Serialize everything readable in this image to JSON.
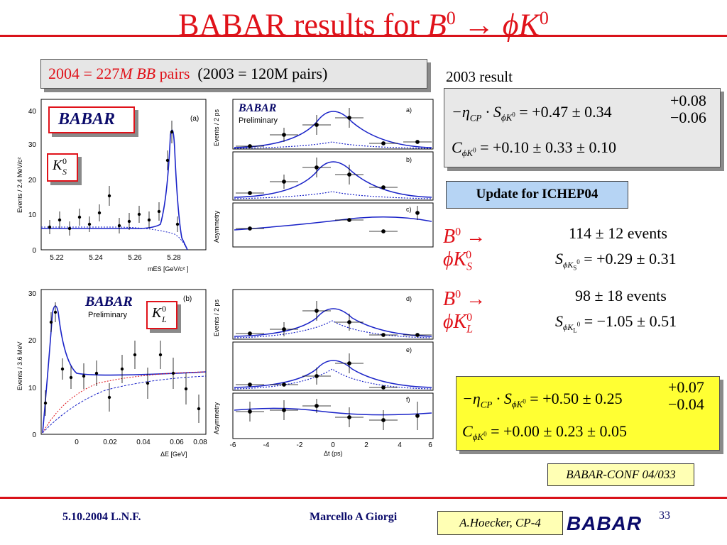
{
  "slide": {
    "title_text": "BABAR results for ",
    "title_sym_b": "B",
    "title_sup_b": "0",
    "title_arrow": "→",
    "title_sym_phi": "ϕK",
    "title_sup_k": "0"
  },
  "pairs_box": {
    "red_part_a": "2004 = 227",
    "red_part_m": "M BB",
    "red_part_b": " pairs",
    "black_part": "(2003 = 120M pairs)"
  },
  "result_2003": {
    "label": "2003 result",
    "row1_lhs": "−η",
    "row1_lhs_sub": "CP",
    "row1_dot": " · S",
    "row1_sub": "ϕK",
    "row1_sub_sup": "0",
    "row1_rhs": "= +0.47 ± 0.34",
    "row1_plus": "+0.08",
    "row1_minus": "−0.06",
    "row2_lhs": "C",
    "row2_sub": "ϕK",
    "row2_sub_sup": "0",
    "row2_rhs": "= +0.10 ± 0.33 ± 0.10"
  },
  "ichep_label": "Update for ICHEP04",
  "ks_result": {
    "mode_b": "B",
    "mode_b_sup": "0",
    "mode_rest": "→ ϕK",
    "mode_sub": "S",
    "mode_sup": "0",
    "events": "114 ± 12 events",
    "s_lhs": "S",
    "s_sub": "ϕK",
    "s_sub_sub": "S",
    "s_sub_sup": "0",
    "s_rhs": "= +0.29 ± 0.31"
  },
  "kl_result": {
    "mode_b": "B",
    "mode_b_sup": "0",
    "mode_rest": "→ ϕK",
    "mode_sub": "L",
    "mode_sup": "0",
    "events": "98 ± 18 events",
    "s_lhs": "S",
    "s_sub": "ϕK",
    "s_sub_sub": "L",
    "s_sub_sup": "0",
    "s_rhs": "= −1.05 ± 0.51"
  },
  "result_2004": {
    "row1_lhs": "−η",
    "row1_lhs_sub": "CP",
    "row1_dot": " · S",
    "row1_sub": "ϕK",
    "row1_sub_sup": "0",
    "row1_rhs": "= +0.50 ± 0.25",
    "row1_plus": "+0.07",
    "row1_minus": "−0.04",
    "row2_lhs": "C",
    "row2_sub": "ϕK",
    "row2_sub_sup": "0",
    "row2_rhs": "= +0.00 ± 0.23 ± 0.05"
  },
  "conf_ref": "BABAR-CONF 04/033",
  "footer": {
    "date": "5.10.2004 L.N.F.",
    "author": "Marcello A Giorgi",
    "page": "33",
    "credit": "A.Hoecker, CP-4",
    "logo": "BABAR"
  },
  "plot_a": {
    "panel_tag": "(a)",
    "logo": "BABAR",
    "ks_label": "K",
    "ks_sub": "S",
    "ks_sup": "0",
    "ylabel": "Events / 2.4 MeV/c²",
    "xlabel": "mES [GeV/c² ]",
    "xticks": [
      "5.22",
      "5.24",
      "5.26",
      "5.28"
    ],
    "yticks": [
      "0",
      "10",
      "20",
      "30",
      "40"
    ]
  },
  "plot_b": {
    "panel_tag": "(b)",
    "logo": "BABAR",
    "logo_sub": "Preliminary",
    "kl_label": "K",
    "kl_sub": "L",
    "kl_sup": "0",
    "ylabel": "Events / 3.6 MeV",
    "xlabel": "ΔE [GeV]",
    "xticks": [
      "0",
      "0.02",
      "0.04",
      "0.06",
      "0.08"
    ],
    "yticks": [
      "0",
      "10",
      "20",
      "30"
    ]
  },
  "dt_top": {
    "logo": "BABAR",
    "logo_sub": "Preliminary",
    "ylabel_events": "Events / 2 ps",
    "ylabel_asym": "Asymmetry",
    "tags": [
      "a)",
      "b)",
      "c)"
    ]
  },
  "dt_bottom": {
    "ylabel_events": "Events / 2 ps",
    "ylabel_asym": "Asymmetry",
    "tags": [
      "d)",
      "e)",
      "f)"
    ],
    "xlabel": "Δt (ps)",
    "xticks": [
      "-6",
      "-4",
      "-2",
      "0",
      "2",
      "4",
      "6"
    ]
  }
}
